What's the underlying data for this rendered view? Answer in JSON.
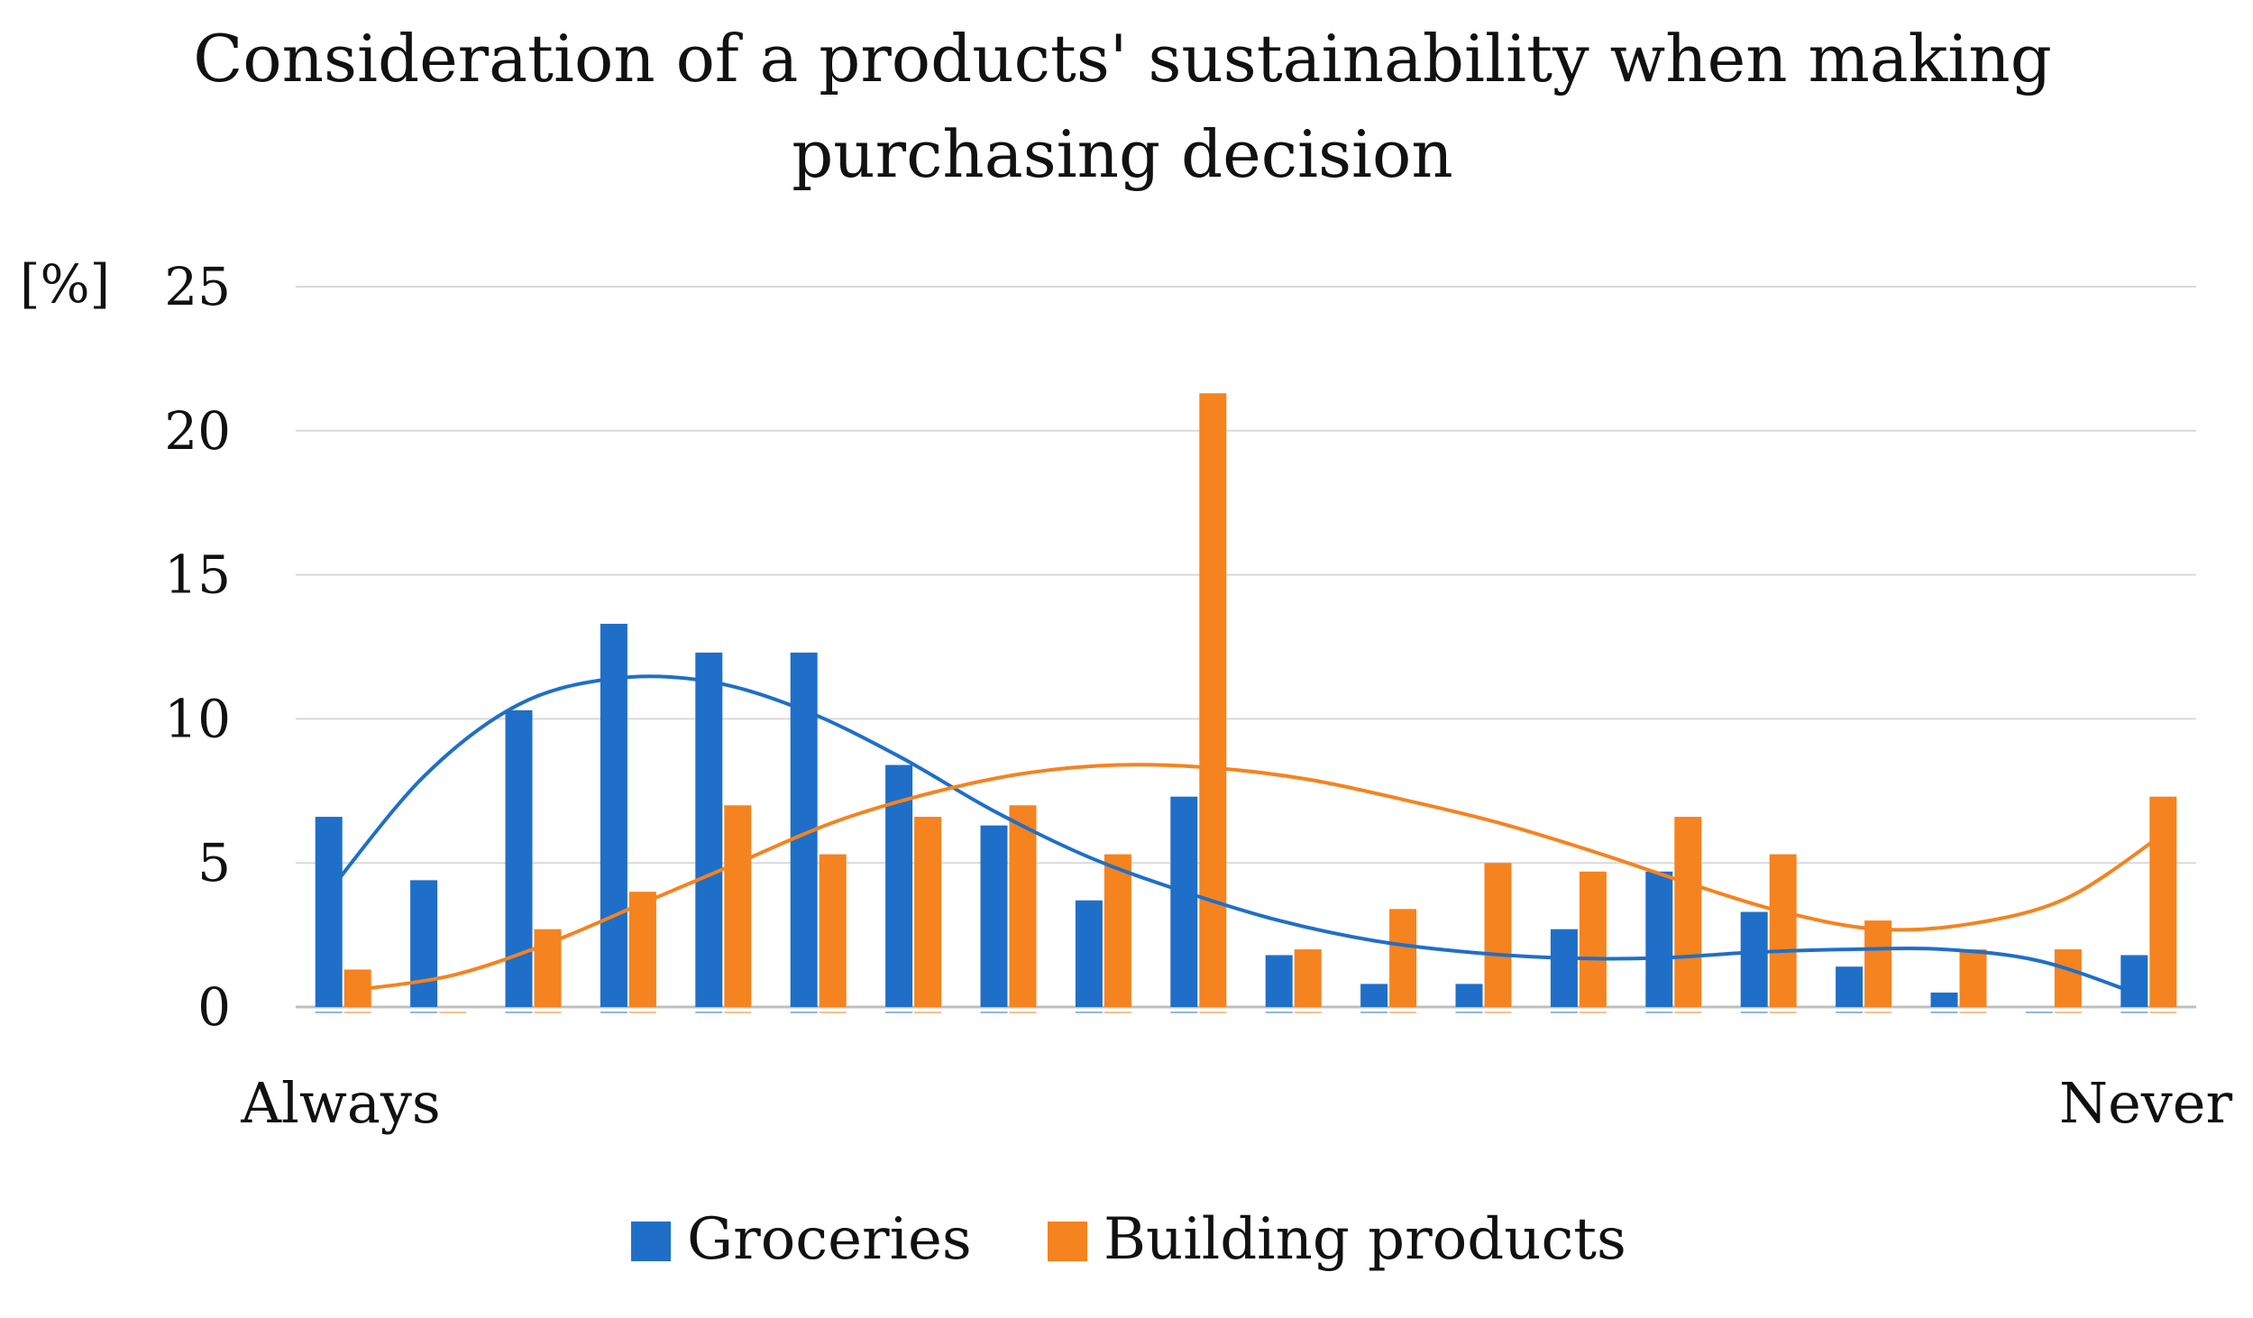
{
  "colors": {
    "groceries": "#1f6fc8",
    "building": "#f5831f",
    "grid": "#d9d9d9",
    "axis": "#bfbfbf"
  },
  "chart_data": {
    "type": "bar",
    "title_lines": [
      "Consideration of a products' sustainability when making",
      "purchasing decision"
    ],
    "ylabel": "[%]",
    "ylim": [
      0,
      25
    ],
    "yticks": [
      0,
      5,
      10,
      15,
      20,
      25
    ],
    "grid": true,
    "x_start_label": "Always",
    "x_end_label": "Never",
    "categories": [
      1,
      2,
      3,
      4,
      5,
      6,
      7,
      8,
      9,
      10,
      11,
      12,
      13,
      14,
      15,
      16,
      17,
      18,
      19,
      20
    ],
    "series": [
      {
        "name": "Groceries",
        "color_key": "groceries",
        "values": [
          6.6,
          4.4,
          10.3,
          13.3,
          12.3,
          12.3,
          8.4,
          6.3,
          3.7,
          7.3,
          1.8,
          0.8,
          0.8,
          2.7,
          4.7,
          3.3,
          1.4,
          0.5,
          0,
          1.8
        ]
      },
      {
        "name": "Building products",
        "color_key": "building",
        "values": [
          1.3,
          0,
          2.7,
          4.0,
          7.0,
          5.3,
          6.6,
          7.0,
          5.3,
          21.3,
          2.0,
          3.4,
          5.0,
          4.7,
          6.6,
          5.3,
          3.0,
          2.0,
          2.0,
          7.3
        ]
      }
    ],
    "trendlines": [
      {
        "series": "Groceries",
        "type": "polynomial",
        "points": [
          [
            1,
            4.0
          ],
          [
            2,
            8.0
          ],
          [
            3,
            10.5
          ],
          [
            4,
            11.4
          ],
          [
            5,
            11.3
          ],
          [
            6,
            10.3
          ],
          [
            7,
            8.7
          ],
          [
            8,
            6.8
          ],
          [
            9,
            5.2
          ],
          [
            10,
            4.0
          ],
          [
            11,
            3.0
          ],
          [
            12,
            2.3
          ],
          [
            13,
            1.9
          ],
          [
            14,
            1.7
          ],
          [
            15,
            1.7
          ],
          [
            16,
            1.9
          ],
          [
            17,
            2.0
          ],
          [
            18,
            2.0
          ],
          [
            19,
            1.6
          ],
          [
            20,
            0.5
          ]
        ]
      },
      {
        "series": "Building products",
        "type": "polynomial",
        "points": [
          [
            1,
            0.6
          ],
          [
            2,
            1.1
          ],
          [
            3,
            2.2
          ],
          [
            4,
            3.6
          ],
          [
            5,
            5.0
          ],
          [
            6,
            6.4
          ],
          [
            7,
            7.4
          ],
          [
            8,
            8.1
          ],
          [
            9,
            8.4
          ],
          [
            10,
            8.3
          ],
          [
            11,
            7.9
          ],
          [
            12,
            7.2
          ],
          [
            13,
            6.4
          ],
          [
            14,
            5.4
          ],
          [
            15,
            4.3
          ],
          [
            16,
            3.3
          ],
          [
            17,
            2.7
          ],
          [
            18,
            2.9
          ],
          [
            19,
            3.8
          ],
          [
            20,
            6.0
          ]
        ]
      }
    ],
    "legend_position": "bottom-center"
  }
}
